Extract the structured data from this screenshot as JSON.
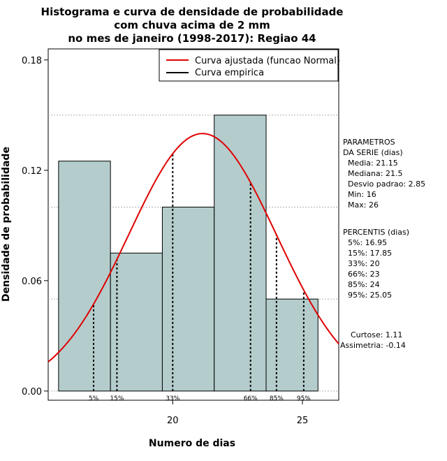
{
  "chart_data": {
    "type": "histogram",
    "title_lines": [
      "Histograma e curva de densidade de probabilidade",
      "com chuva acima de 2 mm",
      "no mes de janeiro (1998-2017): Regiao 44"
    ],
    "xlabel": "Numero de dias",
    "ylabel": "Densidade de probabilidade",
    "xlim": [
      15.2,
      26.4
    ],
    "ylim": [
      -0.005,
      0.186
    ],
    "x_ticks": [
      20,
      25
    ],
    "y_ticks": [
      0.0,
      0.06,
      0.12,
      0.18
    ],
    "y_tick_labels": [
      "0.00",
      "0.06",
      "0.12",
      "0.18"
    ],
    "grid_y": [
      0.05,
      0.1,
      0.15
    ],
    "bins": [
      {
        "x0": 15.6,
        "x1": 17.6,
        "density": 0.125
      },
      {
        "x0": 17.6,
        "x1": 19.6,
        "density": 0.075
      },
      {
        "x0": 19.6,
        "x1": 21.6,
        "density": 0.1
      },
      {
        "x0": 21.6,
        "x1": 23.6,
        "density": 0.15
      },
      {
        "x0": 23.6,
        "x1": 25.6,
        "density": 0.05
      }
    ],
    "fitted_curve": {
      "name": "Curva ajustada (funcao Normal)",
      "color": "#e00000",
      "mean": 21.15,
      "sd": 2.85
    },
    "empirical_curve": {
      "name": "Curva empirica",
      "color": "#000000"
    },
    "percentile_lines": [
      {
        "label": "5%",
        "x": 16.95
      },
      {
        "label": "15%",
        "x": 17.85
      },
      {
        "label": "33%",
        "x": 20
      },
      {
        "label": "66%",
        "x": 23
      },
      {
        "label": "85%",
        "x": 24
      },
      {
        "label": "95%",
        "x": 25.05
      }
    ],
    "legend_position": "top-right",
    "bar_fill": "#b4cccc",
    "params_block": [
      "PARAMETROS",
      "DA SERIE (dias)",
      "Media: 21.15",
      "Mediana: 21.5",
      "Desvio padrao: 2.85",
      "Min: 16",
      "Max: 26"
    ],
    "percentis_block": [
      "PERCENTIS (dias)",
      "5%: 16.95",
      "15%: 17.85",
      "33%: 20",
      "66%: 23",
      "85%: 24",
      "95%: 25.05"
    ],
    "shape_block": [
      "Curtose: 1.11",
      "Assimetria: -0.14"
    ]
  }
}
